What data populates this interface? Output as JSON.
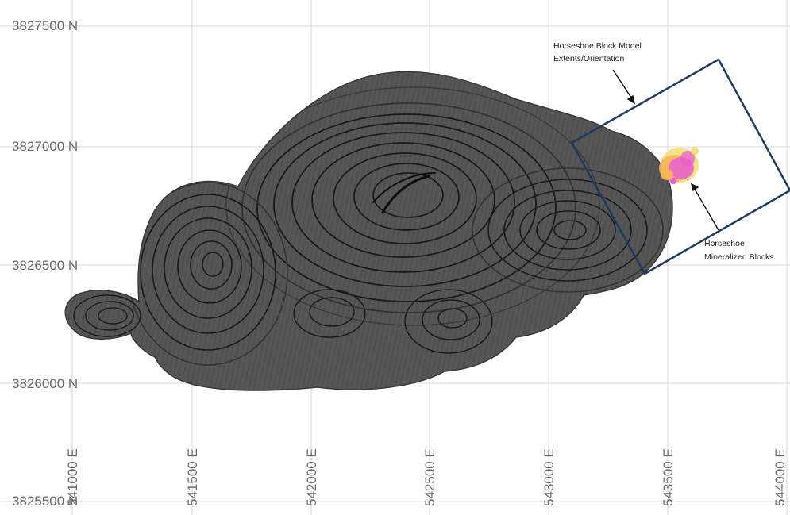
{
  "map": {
    "grid": {
      "northing_labels": [
        "3827500 N",
        "3827000 N",
        "3826500 N",
        "3826000 N",
        "3825500 N"
      ],
      "easting_labels": [
        "541000 E",
        "541500 E",
        "542000 E",
        "542500 E",
        "543000 E",
        "543500 E",
        "544000 E"
      ]
    },
    "annotations": {
      "block_model": {
        "line1": "Horseshoe Block Model",
        "line2": "Extents/Orientation"
      },
      "mineralized_blocks": {
        "line1": "Horseshoe",
        "line2": "Mineralized Blocks"
      }
    },
    "colors": {
      "pit_fill": "#545454",
      "bench_line": "#2b2b2b",
      "bench_dark": "#141414",
      "block_model_outline": "#1f3a5f",
      "grid_line": "#d9d9d9",
      "mineralized_pink": "#e85fd0",
      "mineralized_orange": "#f5b25a",
      "mineralized_yellow": "#f2e07a"
    }
  }
}
